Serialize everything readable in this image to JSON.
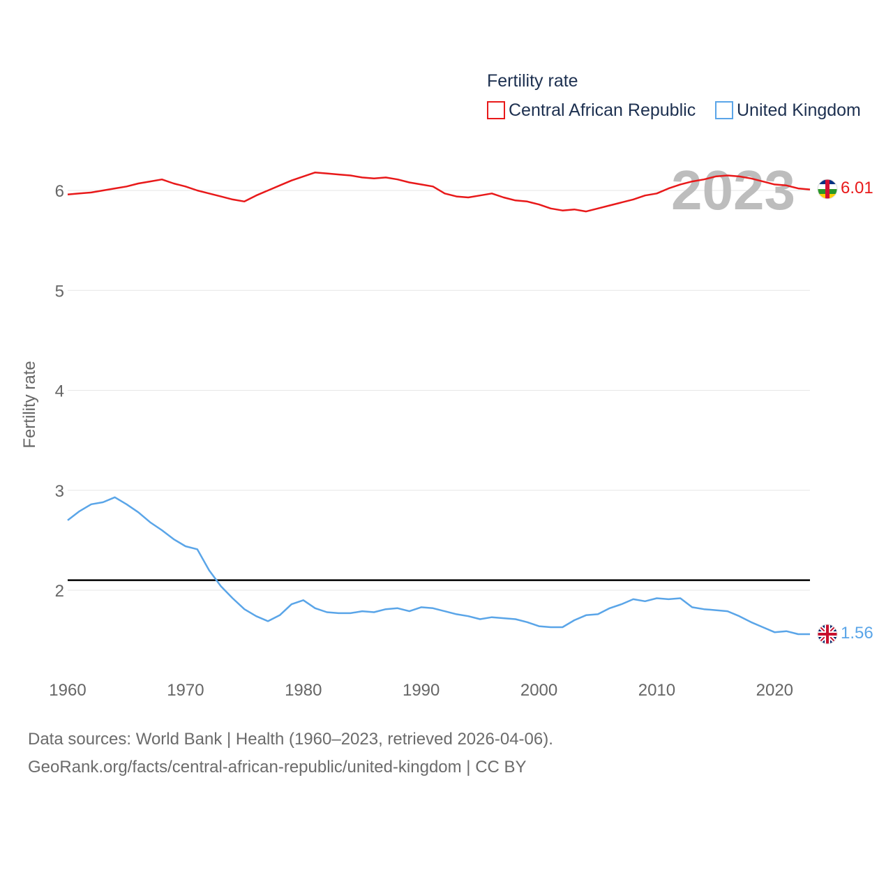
{
  "chart_data": {
    "type": "line",
    "title": "Fertility rate",
    "ylabel": "Fertility rate",
    "xlabel": "",
    "xlim": [
      1960,
      2023
    ],
    "ylim": [
      1.1,
      6.6
    ],
    "x_ticks": [
      1960,
      1970,
      1980,
      1990,
      2000,
      2010,
      2020
    ],
    "y_ticks": [
      2,
      3,
      4,
      5,
      6
    ],
    "year_label": "2023",
    "reference_line": 2.1,
    "x": [
      1960,
      1961,
      1962,
      1963,
      1964,
      1965,
      1966,
      1967,
      1968,
      1969,
      1970,
      1971,
      1972,
      1973,
      1974,
      1975,
      1976,
      1977,
      1978,
      1979,
      1980,
      1981,
      1982,
      1983,
      1984,
      1985,
      1986,
      1987,
      1988,
      1989,
      1990,
      1991,
      1992,
      1993,
      1994,
      1995,
      1996,
      1997,
      1998,
      1999,
      2000,
      2001,
      2002,
      2003,
      2004,
      2005,
      2006,
      2007,
      2008,
      2009,
      2010,
      2011,
      2012,
      2013,
      2014,
      2015,
      2016,
      2017,
      2018,
      2019,
      2020,
      2021,
      2022,
      2023
    ],
    "series": [
      {
        "name": "Central African Republic",
        "color": "#e8191a",
        "end_label": "6.01",
        "flag": "central-african-republic-flag-icon",
        "values": [
          5.96,
          5.97,
          5.98,
          6.0,
          6.02,
          6.04,
          6.07,
          6.09,
          6.11,
          6.07,
          6.04,
          6.0,
          5.97,
          5.94,
          5.91,
          5.89,
          5.95,
          6.0,
          6.05,
          6.1,
          6.14,
          6.18,
          6.17,
          6.16,
          6.15,
          6.13,
          6.12,
          6.13,
          6.11,
          6.08,
          6.06,
          6.04,
          5.97,
          5.94,
          5.93,
          5.95,
          5.97,
          5.93,
          5.9,
          5.89,
          5.86,
          5.82,
          5.8,
          5.81,
          5.79,
          5.82,
          5.85,
          5.88,
          5.91,
          5.95,
          5.97,
          6.02,
          6.06,
          6.09,
          6.11,
          6.14,
          6.15,
          6.14,
          6.12,
          6.09,
          6.06,
          6.05,
          6.02,
          6.01
        ]
      },
      {
        "name": "United Kingdom",
        "color": "#5aa5e8",
        "end_label": "1.56",
        "flag": "united-kingdom-flag-icon",
        "values": [
          2.7,
          2.79,
          2.86,
          2.88,
          2.93,
          2.86,
          2.78,
          2.68,
          2.6,
          2.51,
          2.44,
          2.41,
          2.2,
          2.04,
          1.92,
          1.81,
          1.74,
          1.69,
          1.75,
          1.86,
          1.9,
          1.82,
          1.78,
          1.77,
          1.77,
          1.79,
          1.78,
          1.81,
          1.82,
          1.79,
          1.83,
          1.82,
          1.79,
          1.76,
          1.74,
          1.71,
          1.73,
          1.72,
          1.71,
          1.68,
          1.64,
          1.63,
          1.63,
          1.7,
          1.75,
          1.76,
          1.82,
          1.86,
          1.91,
          1.89,
          1.92,
          1.91,
          1.92,
          1.83,
          1.81,
          1.8,
          1.79,
          1.74,
          1.68,
          1.63,
          1.58,
          1.59,
          1.56,
          1.56
        ]
      }
    ]
  },
  "footer": {
    "line1": "Data sources: World Bank | Health (1960–2023, retrieved 2026-04-06).",
    "line2": "GeoRank.org/facts/central-african-republic/united-kingdom | CC BY"
  }
}
